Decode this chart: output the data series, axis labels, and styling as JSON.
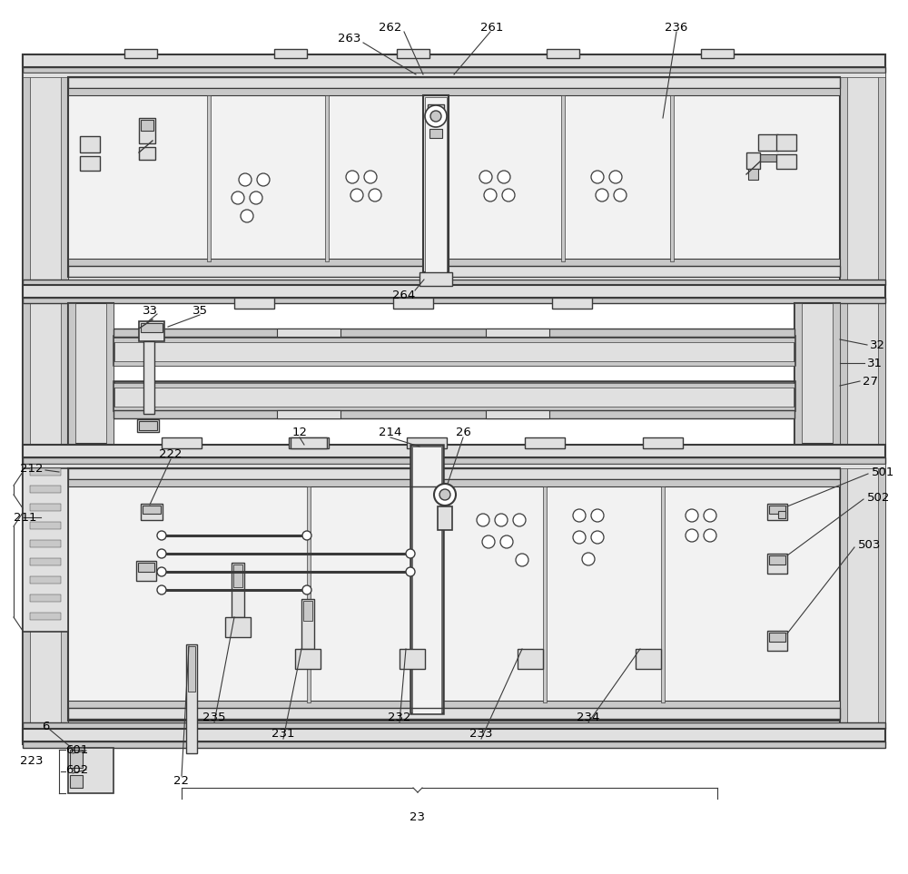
{
  "bg_color": "#ffffff",
  "lc": "#3a3a3a",
  "fc_light": "#f2f2f2",
  "fc_mid": "#e0e0e0",
  "fc_dark": "#c8c8c8",
  "fc_darker": "#b0b0b0",
  "figsize": [
    10.0,
    9.63
  ],
  "dpi": 100
}
